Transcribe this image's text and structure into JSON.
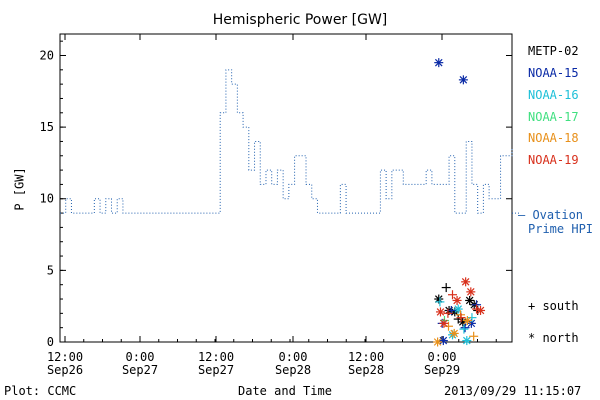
{
  "chart_data": {
    "type": "line",
    "title": "Hemispheric Power [GW]",
    "xlabel": "Date and Time",
    "ylabel": "P [GW]",
    "ylim": [
      0,
      21.5
    ],
    "yticks": [
      0,
      5,
      10,
      15,
      20
    ],
    "xlim_hours": [
      -6,
      54
    ],
    "x_ticks": [
      {
        "hour": 0,
        "line1": "12:00",
        "line2": "Sep26"
      },
      {
        "hour": 12,
        "line1": "0:00",
        "line2": "Sep27"
      },
      {
        "hour": 24,
        "line1": "12:00",
        "line2": "Sep27"
      },
      {
        "hour": 36,
        "line1": "0:00",
        "line2": "Sep28"
      },
      {
        "hour": 48,
        "line1": "12:00",
        "line2": "Sep28"
      },
      {
        "hour": 60,
        "line1": "0:00",
        "line2": "Sep29"
      }
    ],
    "ovation": {
      "name": "Ovation Prime HPI",
      "step_points": [
        [
          -6,
          9
        ],
        [
          -5,
          10
        ],
        [
          -4,
          9
        ],
        [
          -1,
          9
        ],
        [
          0,
          10
        ],
        [
          1,
          9
        ],
        [
          2,
          10
        ],
        [
          3,
          9
        ],
        [
          4,
          10
        ],
        [
          5,
          9
        ],
        [
          8,
          9
        ],
        [
          8,
          9
        ],
        [
          22,
          9
        ],
        [
          22,
          16
        ],
        [
          23,
          19
        ],
        [
          24,
          18
        ],
        [
          25,
          16
        ],
        [
          26,
          15
        ],
        [
          27,
          12
        ],
        [
          28,
          14
        ],
        [
          29,
          11
        ],
        [
          30,
          12
        ],
        [
          31,
          11
        ],
        [
          32,
          12
        ],
        [
          33,
          10
        ],
        [
          34,
          11
        ],
        [
          35,
          13
        ],
        [
          37,
          11
        ],
        [
          38,
          10
        ],
        [
          39,
          9
        ],
        [
          42,
          9
        ],
        [
          43,
          11
        ],
        [
          44,
          9
        ],
        [
          47,
          9
        ],
        [
          48,
          9
        ],
        [
          49,
          9
        ],
        [
          50,
          12
        ],
        [
          51,
          10
        ],
        [
          52,
          12
        ],
        [
          54,
          11
        ],
        [
          55,
          11
        ],
        [
          57,
          11
        ],
        [
          58,
          12
        ],
        [
          59,
          11
        ],
        [
          60,
          11
        ],
        [
          61,
          11
        ],
        [
          62,
          13
        ],
        [
          63,
          9
        ],
        [
          65,
          14
        ],
        [
          66,
          11
        ],
        [
          67,
          9
        ],
        [
          68,
          11
        ],
        [
          69,
          10
        ],
        [
          71,
          13
        ],
        [
          73,
          13.5
        ]
      ]
    },
    "satellites": [
      {
        "name": "METP-02",
        "color": "#000000"
      },
      {
        "name": "NOAA-15",
        "color": "#0a2aa6"
      },
      {
        "name": "NOAA-16",
        "color": "#1ec0d8"
      },
      {
        "name": "NOAA-17",
        "color": "#40e080"
      },
      {
        "name": "NOAA-18",
        "color": "#e8901a"
      },
      {
        "name": "NOAA-19",
        "color": "#d8301c"
      }
    ],
    "points": [
      {
        "sat": "NOAA-15",
        "hour": 60.2,
        "p": 19.5,
        "kind": "north"
      },
      {
        "sat": "NOAA-15",
        "hour": 64.5,
        "p": 18.3,
        "kind": "north"
      },
      {
        "sat": "METP-02",
        "hour": 61.5,
        "p": 3.8,
        "kind": "south"
      },
      {
        "sat": "METP-02",
        "hour": 62.0,
        "p": 2.2,
        "kind": "north"
      },
      {
        "sat": "METP-02",
        "hour": 60.2,
        "p": 3.0,
        "kind": "north"
      },
      {
        "sat": "METP-02",
        "hour": 63.6,
        "p": 1.6,
        "kind": "south"
      },
      {
        "sat": "METP-02",
        "hour": 64.4,
        "p": 1.4,
        "kind": "north"
      },
      {
        "sat": "METP-02",
        "hour": 65.6,
        "p": 2.9,
        "kind": "north"
      },
      {
        "sat": "METP-02",
        "hour": 66.4,
        "p": 2.6,
        "kind": "north"
      },
      {
        "sat": "METP-02",
        "hour": 67.0,
        "p": 2.2,
        "kind": "south"
      },
      {
        "sat": "METP-02",
        "hour": 63.0,
        "p": 2.1,
        "kind": "north"
      },
      {
        "sat": "NOAA-15",
        "hour": 61.0,
        "p": 0.1,
        "kind": "north"
      },
      {
        "sat": "NOAA-15",
        "hour": 62.4,
        "p": 2.2,
        "kind": "south"
      },
      {
        "sat": "NOAA-15",
        "hour": 64.8,
        "p": 1.0,
        "kind": "south"
      },
      {
        "sat": "NOAA-15",
        "hour": 65.9,
        "p": 1.3,
        "kind": "north"
      },
      {
        "sat": "NOAA-15",
        "hour": 66.8,
        "p": 2.6,
        "kind": "south"
      },
      {
        "sat": "NOAA-15",
        "hour": 60.8,
        "p": 1.3,
        "kind": "south"
      },
      {
        "sat": "NOAA-16",
        "hour": 60.4,
        "p": 2.8,
        "kind": "south"
      },
      {
        "sat": "NOAA-16",
        "hour": 62.6,
        "p": 0.5,
        "kind": "north"
      },
      {
        "sat": "NOAA-16",
        "hour": 63.6,
        "p": 2.3,
        "kind": "north"
      },
      {
        "sat": "NOAA-16",
        "hour": 64.6,
        "p": 0.9,
        "kind": "south"
      },
      {
        "sat": "NOAA-16",
        "hour": 65.1,
        "p": 0.1,
        "kind": "north"
      },
      {
        "sat": "NOAA-16",
        "hour": 66.0,
        "p": 1.7,
        "kind": "south"
      },
      {
        "sat": "NOAA-17",
        "hour": 61.2,
        "p": 1.5,
        "kind": "south"
      },
      {
        "sat": "NOAA-18",
        "hour": 60.0,
        "p": 0.0,
        "kind": "north"
      },
      {
        "sat": "NOAA-18",
        "hour": 61.9,
        "p": 1.1,
        "kind": "south"
      },
      {
        "sat": "NOAA-18",
        "hour": 62.9,
        "p": 0.6,
        "kind": "north"
      },
      {
        "sat": "NOAA-18",
        "hour": 64.0,
        "p": 1.9,
        "kind": "south"
      },
      {
        "sat": "NOAA-18",
        "hour": 65.2,
        "p": 1.5,
        "kind": "north"
      },
      {
        "sat": "NOAA-18",
        "hour": 66.3,
        "p": 0.4,
        "kind": "south"
      },
      {
        "sat": "NOAA-19",
        "hour": 60.5,
        "p": 2.1,
        "kind": "north"
      },
      {
        "sat": "NOAA-19",
        "hour": 61.1,
        "p": 1.3,
        "kind": "north"
      },
      {
        "sat": "NOAA-19",
        "hour": 61.8,
        "p": 2.0,
        "kind": "south"
      },
      {
        "sat": "NOAA-19",
        "hour": 62.6,
        "p": 3.3,
        "kind": "south"
      },
      {
        "sat": "NOAA-19",
        "hour": 63.4,
        "p": 2.9,
        "kind": "north"
      },
      {
        "sat": "NOAA-19",
        "hour": 64.1,
        "p": 1.7,
        "kind": "south"
      },
      {
        "sat": "NOAA-19",
        "hour": 64.9,
        "p": 4.2,
        "kind": "north"
      },
      {
        "sat": "NOAA-19",
        "hour": 65.8,
        "p": 3.5,
        "kind": "north"
      },
      {
        "sat": "NOAA-19",
        "hour": 66.8,
        "p": 2.3,
        "kind": "south"
      },
      {
        "sat": "NOAA-19",
        "hour": 67.5,
        "p": 2.2,
        "kind": "north"
      }
    ],
    "grid": false
  },
  "legend": {
    "ovation_line1": "— Ovation",
    "ovation_line2": "Prime HPI",
    "south_label": "+ south",
    "north_label": "* north"
  },
  "footer": {
    "left": "Plot: CCMC",
    "center": "Date and Time",
    "right": "2013/09/29 11:15:07"
  }
}
